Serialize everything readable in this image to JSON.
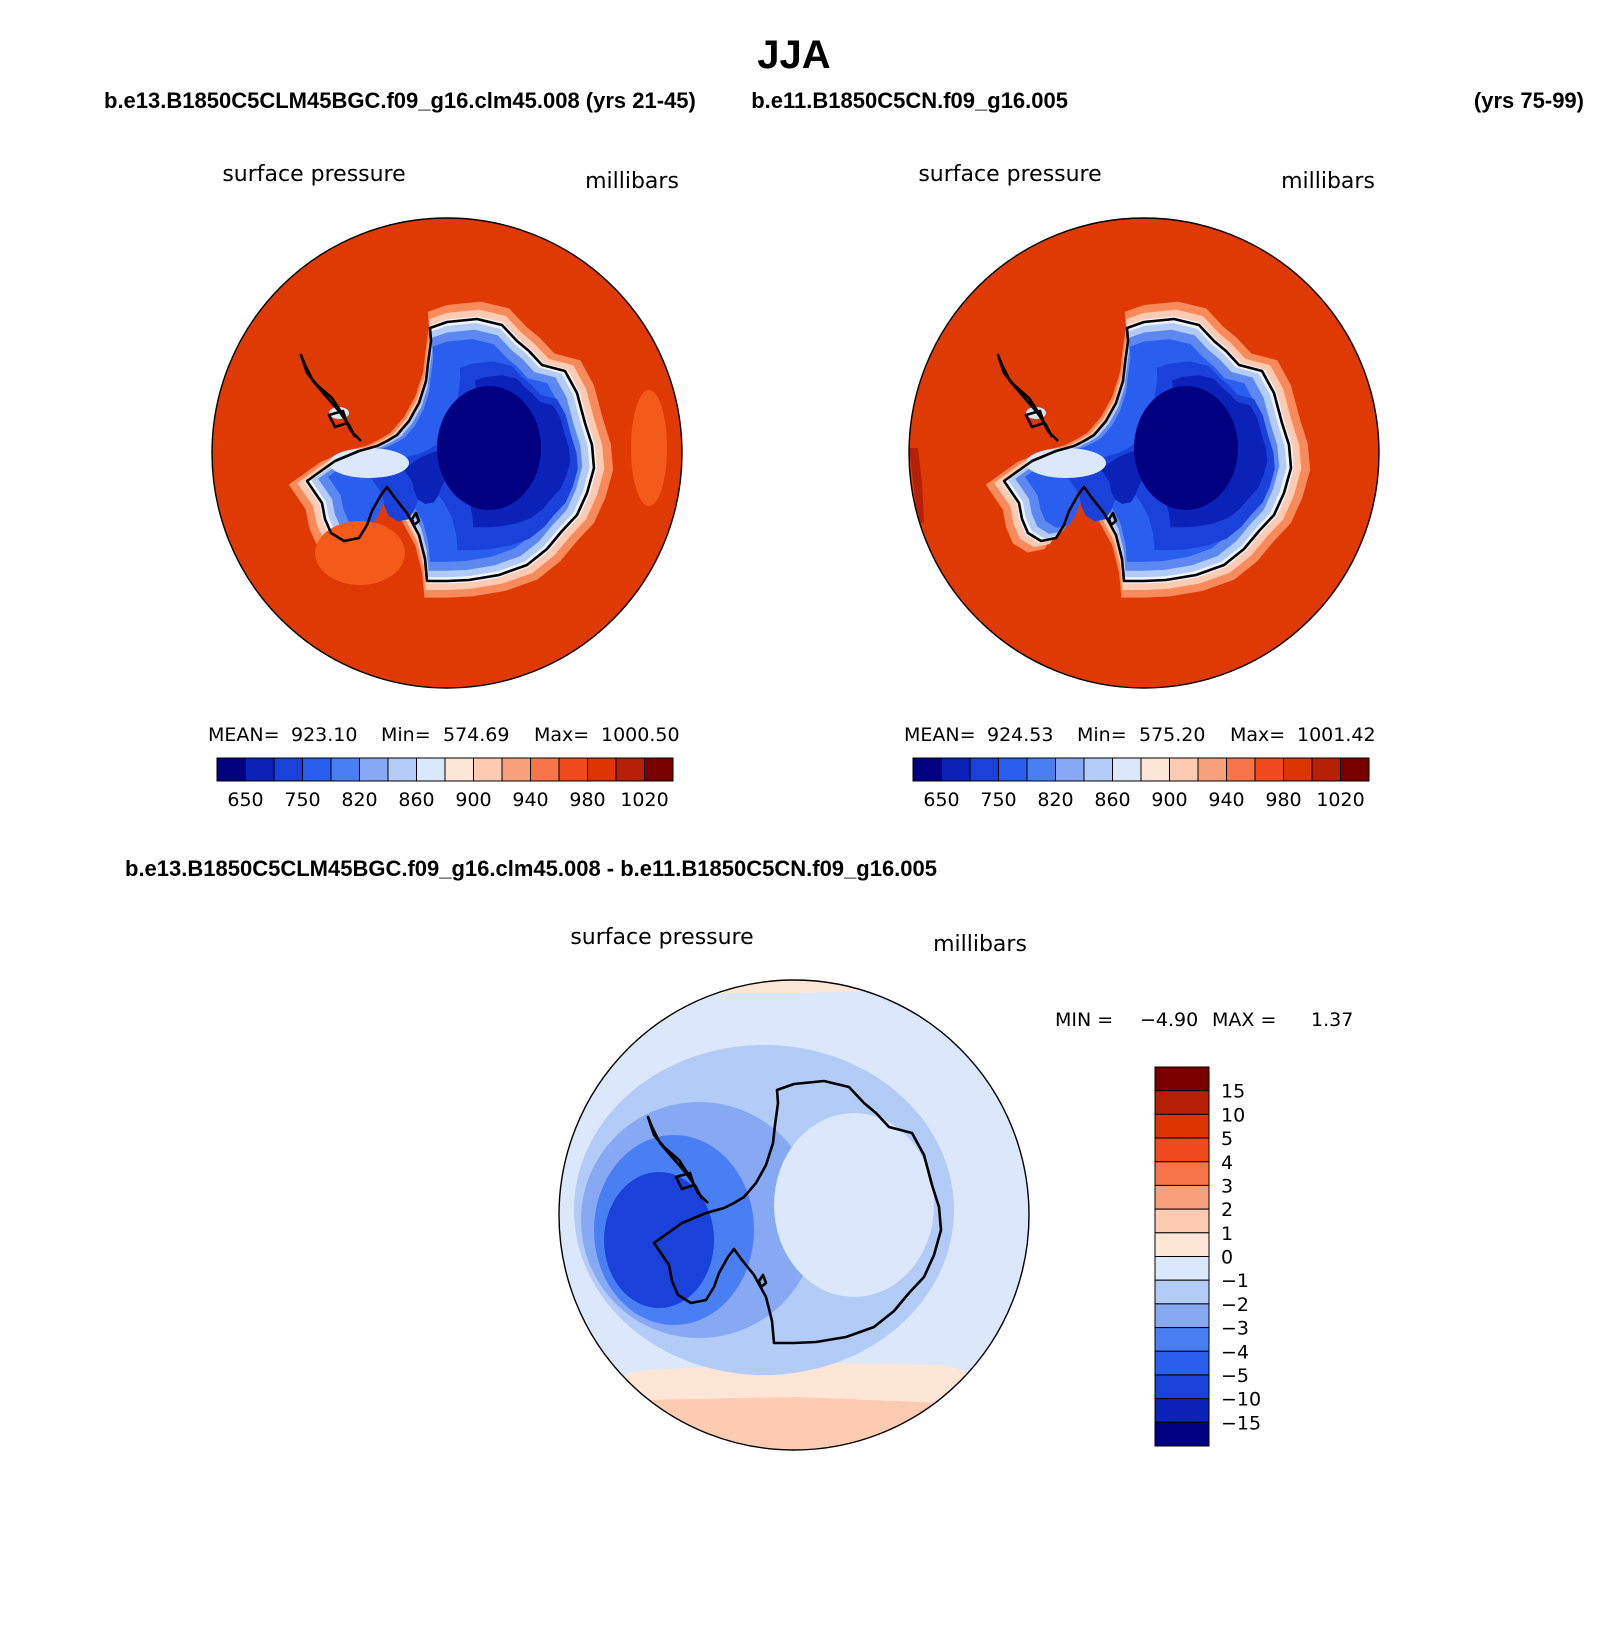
{
  "page": {
    "title": "JJA"
  },
  "top": {
    "title_left": "b.e13.B1850C5CLM45BGC.f09_g16.clm45.008 (yrs 21-45)",
    "title_right": "b.e11.B1850C5CN.f09_g16.005",
    "years_right": "(yrs 75-99)"
  },
  "panels": [
    {
      "id": "case1",
      "variable": "surface pressure",
      "units": "millibars",
      "stats": {
        "mean_label": "MEAN=",
        "mean": "923.10",
        "min_label": "Min=",
        "min": "574.69",
        "max_label": "Max=",
        "max": "1000.50"
      }
    },
    {
      "id": "case2",
      "variable": "surface pressure",
      "units": "millibars",
      "stats": {
        "mean_label": "MEAN=",
        "mean": "924.53",
        "min_label": "Min=",
        "min": "575.20",
        "max_label": "Max=",
        "max": "1001.42"
      }
    }
  ],
  "diff": {
    "title": "b.e13.B1850C5CLM45BGC.f09_g16.clm45.008 - b.e11.B1850C5CN.f09_g16.005",
    "variable": "surface pressure",
    "units": "millibars",
    "min_label": "MIN =",
    "min": "−4.90",
    "max_label": "MAX =",
    "max": "1.37"
  },
  "abs_colorbar": {
    "colors": [
      "#000080",
      "#0a22b8",
      "#1a41d9",
      "#2a5eee",
      "#4a7ff3",
      "#87a8f3",
      "#b2cbf7",
      "#dbe8fb",
      "#fde6d6",
      "#fccbb1",
      "#f8a07c",
      "#f67447",
      "#f04a1e",
      "#dc3503",
      "#b52006",
      "#7a0000"
    ],
    "labels": [
      "650",
      "750",
      "820",
      "860",
      "900",
      "940",
      "980",
      "1020"
    ]
  },
  "diff_colorbar": {
    "colors": [
      "#7a0000",
      "#b52006",
      "#dc3503",
      "#f04a1e",
      "#f67447",
      "#f8a07c",
      "#fccbb1",
      "#fde6d6",
      "#dbe8fb",
      "#b2cbf7",
      "#87a8f3",
      "#4a7ff3",
      "#2a5eee",
      "#1a41d9",
      "#0a22b8",
      "#000080"
    ],
    "labels": [
      "15",
      "10",
      "5",
      "4",
      "3",
      "2",
      "1",
      "0",
      "−1",
      "−2",
      "−3",
      "−4",
      "−5",
      "−10",
      "−15"
    ]
  }
}
